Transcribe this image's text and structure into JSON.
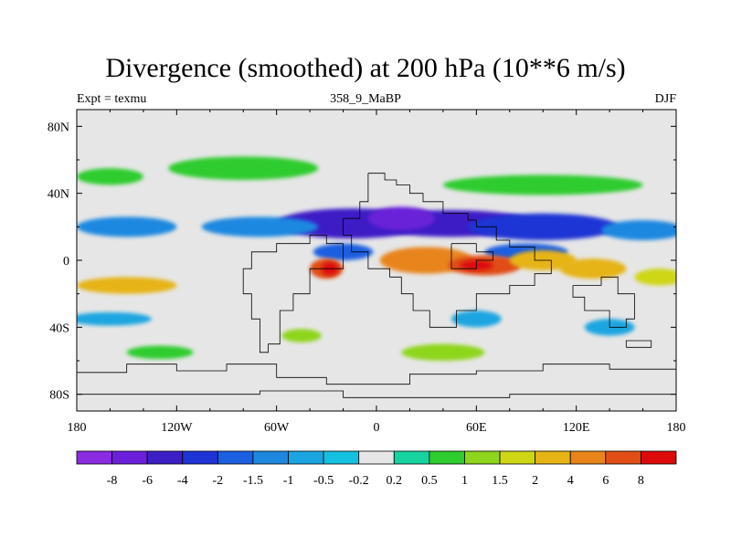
{
  "chart_data": {
    "type": "heatmap",
    "title": "Divergence (smoothed) at 200 hPa (10**6 m/s)",
    "left_string": "Expt = texmu",
    "center_string": "358_9_MaBP",
    "right_string": "DJF",
    "x_ticks": [
      "180",
      "120W",
      "60W",
      "0",
      "60E",
      "120E",
      "180"
    ],
    "x_tick_values": [
      -180,
      -120,
      -60,
      0,
      60,
      120,
      180
    ],
    "y_ticks": [
      "80N",
      "40N",
      "0",
      "40S",
      "80S"
    ],
    "y_tick_values": [
      80,
      40,
      0,
      -40,
      -80
    ],
    "xlim": [
      -180,
      180
    ],
    "ylim": [
      -90,
      90
    ],
    "colorbar_labels": [
      "-8",
      "-6",
      "-4",
      "-2",
      "-1.5",
      "-1",
      "-0.5",
      "-0.2",
      "0.2",
      "0.5",
      "1",
      "1.5",
      "2",
      "4",
      "6",
      "8"
    ],
    "colorbar_colors": [
      "#8a2be2",
      "#6a20d8",
      "#3d1fc6",
      "#1f34d4",
      "#1c5fe0",
      "#1e88e0",
      "#1aa5e0",
      "#14c0df",
      "#e6e6e6",
      "#16d3a0",
      "#2ecc2e",
      "#8ed61e",
      "#cfd614",
      "#e6b414",
      "#e8841a",
      "#e04e16",
      "#dc0a0a"
    ],
    "blobs": [
      {
        "lon": -15,
        "lat": 22,
        "rx": 45,
        "ry": 9,
        "level": 2
      },
      {
        "lon": 45,
        "lat": 22,
        "rx": 50,
        "ry": 8,
        "level": 2
      },
      {
        "lon": 100,
        "lat": 20,
        "rx": 45,
        "ry": 8,
        "level": 3
      },
      {
        "lon": -150,
        "lat": 20,
        "rx": 30,
        "ry": 6,
        "level": 5
      },
      {
        "lon": 160,
        "lat": 18,
        "rx": 25,
        "ry": 6,
        "level": 5
      },
      {
        "lon": -70,
        "lat": 20,
        "rx": 35,
        "ry": 6,
        "level": 5
      },
      {
        "lon": 15,
        "lat": 25,
        "rx": 20,
        "ry": 7,
        "level": 1
      },
      {
        "lon": -20,
        "lat": 5,
        "rx": 18,
        "ry": 5,
        "level": 4
      },
      {
        "lon": 90,
        "lat": 5,
        "rx": 25,
        "ry": 5,
        "level": 4
      },
      {
        "lon": -30,
        "lat": -5,
        "rx": 10,
        "ry": 6,
        "level": 15
      },
      {
        "lon": -28,
        "lat": -5,
        "rx": 5,
        "ry": 4,
        "level": 16
      },
      {
        "lon": 30,
        "lat": 0,
        "rx": 28,
        "ry": 8,
        "level": 14
      },
      {
        "lon": 65,
        "lat": -3,
        "rx": 22,
        "ry": 6,
        "level": 15
      },
      {
        "lon": 60,
        "lat": -3,
        "rx": 10,
        "ry": 3,
        "level": 16
      },
      {
        "lon": 100,
        "lat": 0,
        "rx": 20,
        "ry": 6,
        "level": 13
      },
      {
        "lon": -150,
        "lat": -15,
        "rx": 30,
        "ry": 5,
        "level": 13
      },
      {
        "lon": 130,
        "lat": -5,
        "rx": 20,
        "ry": 6,
        "level": 13
      },
      {
        "lon": 170,
        "lat": -10,
        "rx": 15,
        "ry": 5,
        "level": 12
      },
      {
        "lon": -80,
        "lat": 55,
        "rx": 45,
        "ry": 7,
        "level": 10
      },
      {
        "lon": 100,
        "lat": 45,
        "rx": 60,
        "ry": 6,
        "level": 10
      },
      {
        "lon": -160,
        "lat": 50,
        "rx": 20,
        "ry": 5,
        "level": 10
      },
      {
        "lon": -130,
        "lat": -55,
        "rx": 20,
        "ry": 4,
        "level": 10
      },
      {
        "lon": 40,
        "lat": -55,
        "rx": 25,
        "ry": 5,
        "level": 11
      },
      {
        "lon": -45,
        "lat": -45,
        "rx": 12,
        "ry": 4,
        "level": 11
      },
      {
        "lon": 140,
        "lat": -40,
        "rx": 15,
        "ry": 5,
        "level": 6
      },
      {
        "lon": 60,
        "lat": -35,
        "rx": 15,
        "ry": 5,
        "level": 6
      },
      {
        "lon": -160,
        "lat": -35,
        "rx": 25,
        "ry": 4,
        "level": 6
      }
    ],
    "land_outlines": [
      [
        [
          -5,
          52
        ],
        [
          5,
          52
        ],
        [
          5,
          48
        ],
        [
          12,
          48
        ],
        [
          12,
          45
        ],
        [
          20,
          45
        ],
        [
          20,
          40
        ],
        [
          28,
          40
        ],
        [
          28,
          35
        ],
        [
          40,
          35
        ],
        [
          40,
          28
        ],
        [
          55,
          28
        ],
        [
          55,
          24
        ],
        [
          60,
          24
        ],
        [
          60,
          20
        ],
        [
          72,
          20
        ],
        [
          72,
          12
        ],
        [
          80,
          12
        ],
        [
          80,
          8
        ],
        [
          95,
          8
        ],
        [
          95,
          0
        ],
        [
          105,
          0
        ],
        [
          105,
          -8
        ],
        [
          95,
          -8
        ],
        [
          95,
          -15
        ],
        [
          80,
          -15
        ],
        [
          80,
          -20
        ],
        [
          60,
          -20
        ],
        [
          60,
          -30
        ],
        [
          48,
          -30
        ],
        [
          48,
          -40
        ],
        [
          32,
          -40
        ],
        [
          32,
          -30
        ],
        [
          22,
          -30
        ],
        [
          22,
          -20
        ],
        [
          15,
          -20
        ],
        [
          15,
          -10
        ],
        [
          8,
          -10
        ],
        [
          8,
          -5
        ],
        [
          -5,
          -5
        ],
        [
          -5,
          5
        ],
        [
          -15,
          5
        ],
        [
          -15,
          15
        ],
        [
          -20,
          15
        ],
        [
          -20,
          25
        ],
        [
          -10,
          25
        ],
        [
          -10,
          35
        ],
        [
          -5,
          35
        ],
        [
          -5,
          52
        ]
      ],
      [
        [
          -20,
          10
        ],
        [
          -20,
          -5
        ],
        [
          -40,
          -5
        ],
        [
          -40,
          -20
        ],
        [
          -50,
          -20
        ],
        [
          -50,
          -30
        ],
        [
          -58,
          -30
        ],
        [
          -58,
          -50
        ],
        [
          -65,
          -50
        ],
        [
          -65,
          -55
        ],
        [
          -70,
          -55
        ],
        [
          -70,
          -35
        ],
        [
          -75,
          -35
        ],
        [
          -75,
          -20
        ],
        [
          -80,
          -20
        ],
        [
          -80,
          -5
        ],
        [
          -75,
          -5
        ],
        [
          -75,
          5
        ],
        [
          -60,
          5
        ],
        [
          -60,
          10
        ],
        [
          -40,
          10
        ],
        [
          -40,
          15
        ],
        [
          -30,
          15
        ],
        [
          -30,
          10
        ],
        [
          -20,
          10
        ]
      ],
      [
        [
          118,
          -15
        ],
        [
          118,
          -22
        ],
        [
          125,
          -22
        ],
        [
          125,
          -30
        ],
        [
          140,
          -30
        ],
        [
          140,
          -40
        ],
        [
          150,
          -40
        ],
        [
          150,
          -35
        ],
        [
          155,
          -35
        ],
        [
          155,
          -20
        ],
        [
          145,
          -20
        ],
        [
          145,
          -10
        ],
        [
          135,
          -10
        ],
        [
          135,
          -15
        ],
        [
          118,
          -15
        ]
      ],
      [
        [
          -180,
          -67
        ],
        [
          -150,
          -67
        ],
        [
          -150,
          -62
        ],
        [
          -120,
          -62
        ],
        [
          -120,
          -66
        ],
        [
          -90,
          -66
        ],
        [
          -90,
          -62
        ],
        [
          -60,
          -62
        ],
        [
          -60,
          -70
        ],
        [
          -30,
          -70
        ],
        [
          -30,
          -74
        ],
        [
          20,
          -74
        ],
        [
          20,
          -68
        ],
        [
          60,
          -68
        ],
        [
          60,
          -66
        ],
        [
          100,
          -66
        ],
        [
          100,
          -62
        ],
        [
          140,
          -62
        ],
        [
          140,
          -65
        ],
        [
          180,
          -65
        ]
      ],
      [
        [
          -180,
          -80
        ],
        [
          -70,
          -80
        ],
        [
          -70,
          -78
        ],
        [
          -20,
          -78
        ],
        [
          -20,
          -82
        ],
        [
          80,
          -82
        ],
        [
          80,
          -80
        ],
        [
          180,
          -80
        ]
      ],
      [
        [
          45,
          10
        ],
        [
          60,
          10
        ],
        [
          60,
          5
        ],
        [
          70,
          5
        ],
        [
          70,
          0
        ],
        [
          60,
          0
        ],
        [
          60,
          -5
        ],
        [
          45,
          -5
        ],
        [
          45,
          10
        ]
      ],
      [
        [
          150,
          -52
        ],
        [
          165,
          -52
        ],
        [
          165,
          -48
        ],
        [
          150,
          -48
        ],
        [
          150,
          -52
        ]
      ]
    ]
  }
}
